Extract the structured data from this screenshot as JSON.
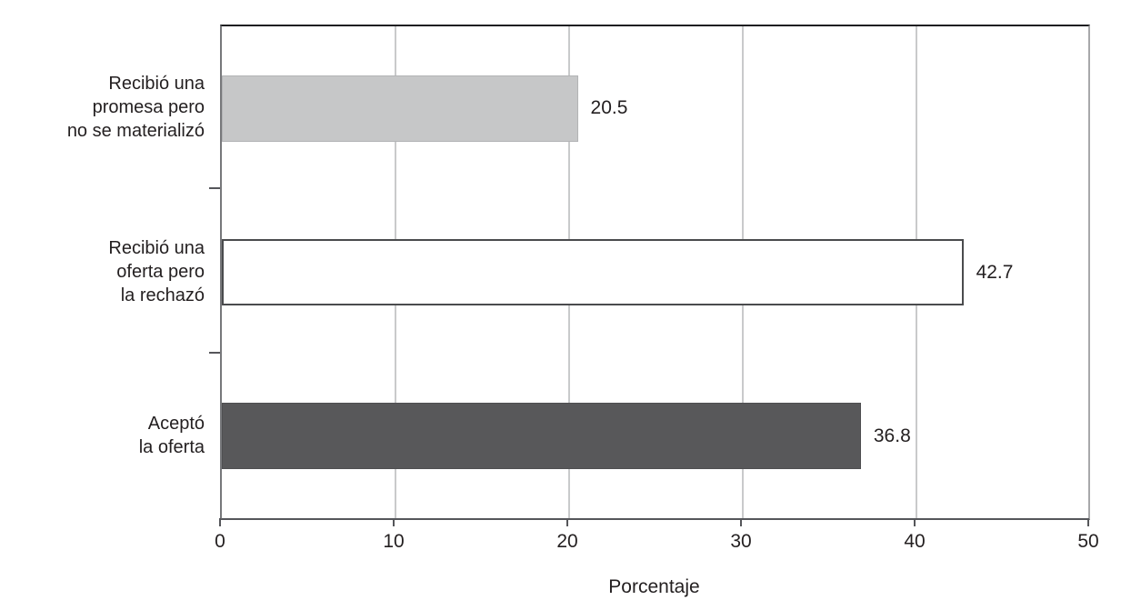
{
  "chart_data": {
    "type": "bar",
    "orientation": "horizontal",
    "title": "",
    "xlabel": "Porcentaje",
    "xlim": [
      0,
      50
    ],
    "xticks": [
      "0",
      "10",
      "20",
      "30",
      "40",
      "50"
    ],
    "grid": true,
    "legend": "none",
    "categories": [
      "Recibió una\npromesa pero\nno se materializó",
      "Recibió una\noferta pero\nla rechazó",
      "Aceptó\nla oferta"
    ],
    "values": [
      20.5,
      42.7,
      36.8
    ],
    "bars": [
      {
        "label": "Recibió una\npromesa pero\nno se materializó",
        "value": 20.5,
        "value_label": "20.5",
        "fill": "#c6c7c8",
        "border": "#b2b3b5",
        "border_width": 1
      },
      {
        "label": "Recibió una\noferta pero\nla rechazó",
        "value": 42.7,
        "value_label": "42.7",
        "fill": "#ffffff",
        "border": "#4a4b4d",
        "border_width": 2
      },
      {
        "label": "Aceptó\nla oferta",
        "value": 36.8,
        "value_label": "36.8",
        "fill": "#58585a",
        "border": "#4f4f51",
        "border_width": 1
      }
    ],
    "colors": {
      "grid": "#c9cacb",
      "axis": "#55565a",
      "plot_top_border": "#1f1f21",
      "text": "#231f20"
    }
  }
}
